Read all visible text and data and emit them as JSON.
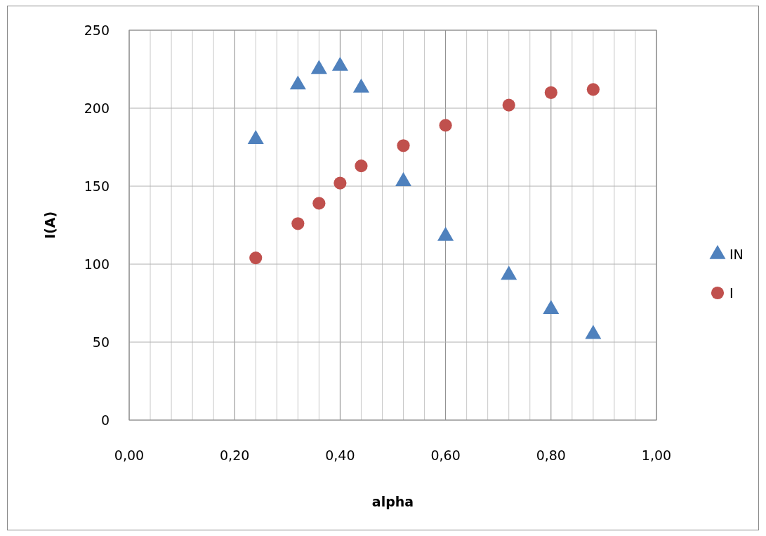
{
  "chart_data": {
    "type": "scatter",
    "xlabel": "alpha",
    "ylabel": "I(A)",
    "xlim": [
      0,
      1
    ],
    "ylim": [
      0,
      250
    ],
    "xticks": [
      {
        "value": 0,
        "label": "0,00"
      },
      {
        "value": 0.04,
        "label": null
      },
      {
        "value": 0.08,
        "label": null
      },
      {
        "value": 0.12,
        "label": null
      },
      {
        "value": 0.16,
        "label": null
      },
      {
        "value": 0.2,
        "label": "0,20"
      },
      {
        "value": 0.24,
        "label": null
      },
      {
        "value": 0.28,
        "label": null
      },
      {
        "value": 0.32,
        "label": null
      },
      {
        "value": 0.36,
        "label": null
      },
      {
        "value": 0.4,
        "label": "0,40"
      },
      {
        "value": 0.44,
        "label": null
      },
      {
        "value": 0.48,
        "label": null
      },
      {
        "value": 0.52,
        "label": null
      },
      {
        "value": 0.56,
        "label": null
      },
      {
        "value": 0.6,
        "label": "0,60"
      },
      {
        "value": 0.64,
        "label": null
      },
      {
        "value": 0.68,
        "label": null
      },
      {
        "value": 0.72,
        "label": null
      },
      {
        "value": 0.76,
        "label": null
      },
      {
        "value": 0.8,
        "label": "0,80"
      },
      {
        "value": 0.84,
        "label": null
      },
      {
        "value": 0.88,
        "label": null
      },
      {
        "value": 0.92,
        "label": null
      },
      {
        "value": 0.96,
        "label": null
      },
      {
        "value": 1,
        "label": "1,00"
      }
    ],
    "yticks": [
      0,
      50,
      100,
      150,
      200,
      250
    ],
    "grid": true,
    "legend": "right",
    "series": [
      {
        "name": "IN",
        "color": "#4f81bd",
        "marker": "triangle",
        "x": [
          0.24,
          0.32,
          0.36,
          0.4,
          0.44,
          0.52,
          0.6,
          0.72,
          0.8,
          0.88
        ],
        "values": [
          180,
          215,
          225,
          227,
          213,
          153,
          118,
          93,
          71,
          55
        ]
      },
      {
        "name": "I",
        "color": "#c0504d",
        "marker": "circle",
        "x": [
          0.24,
          0.32,
          0.36,
          0.4,
          0.44,
          0.52,
          0.6,
          0.72,
          0.8,
          0.88
        ],
        "values": [
          104,
          126,
          139,
          152,
          163,
          176,
          189,
          202,
          210,
          212
        ]
      }
    ]
  }
}
